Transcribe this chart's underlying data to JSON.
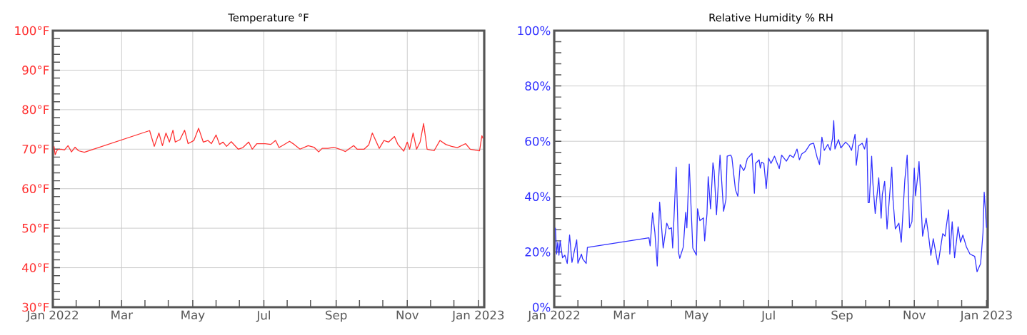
{
  "chart_data": [
    {
      "type": "line",
      "title": "Temperature °F",
      "grid": true,
      "xlim": [
        "2022-01-01",
        "2023-01-06"
      ],
      "xticks": [
        {
          "value": "2022-01-01",
          "label": "Jan 2022"
        },
        {
          "value": "2022-01-21",
          "label": null
        },
        {
          "value": "2022-02-10",
          "label": null
        },
        {
          "value": "2022-03-01",
          "label": "Mar"
        },
        {
          "value": "2022-03-21",
          "label": null
        },
        {
          "value": "2022-04-10",
          "label": null
        },
        {
          "value": "2022-05-01",
          "label": "May"
        },
        {
          "value": "2022-05-21",
          "label": null
        },
        {
          "value": "2022-06-10",
          "label": null
        },
        {
          "value": "2022-07-01",
          "label": "Jul"
        },
        {
          "value": "2022-07-21",
          "label": null
        },
        {
          "value": "2022-08-10",
          "label": null
        },
        {
          "value": "2022-09-01",
          "label": "Sep"
        },
        {
          "value": "2022-09-21",
          "label": null
        },
        {
          "value": "2022-10-11",
          "label": null
        },
        {
          "value": "2022-11-01",
          "label": "Nov"
        },
        {
          "value": "2022-11-21",
          "label": null
        },
        {
          "value": "2022-12-11",
          "label": null
        },
        {
          "value": "2023-01-01",
          "label": "Jan 2023"
        }
      ],
      "ylim": [
        30,
        100
      ],
      "yticks": [
        {
          "value": 30,
          "label": "30°F"
        },
        {
          "value": 32,
          "label": null
        },
        {
          "value": 34,
          "label": null
        },
        {
          "value": 36,
          "label": null
        },
        {
          "value": 38,
          "label": null
        },
        {
          "value": 40,
          "label": "40°F"
        },
        {
          "value": 42,
          "label": null
        },
        {
          "value": 44,
          "label": null
        },
        {
          "value": 46,
          "label": null
        },
        {
          "value": 48,
          "label": null
        },
        {
          "value": 50,
          "label": "50°F"
        },
        {
          "value": 52,
          "label": null
        },
        {
          "value": 54,
          "label": null
        },
        {
          "value": 56,
          "label": null
        },
        {
          "value": 58,
          "label": null
        },
        {
          "value": 60,
          "label": "60°F"
        },
        {
          "value": 62,
          "label": null
        },
        {
          "value": 64,
          "label": null
        },
        {
          "value": 66,
          "label": null
        },
        {
          "value": 68,
          "label": null
        },
        {
          "value": 70,
          "label": "70°F"
        },
        {
          "value": 72,
          "label": null
        },
        {
          "value": 74,
          "label": null
        },
        {
          "value": 76,
          "label": null
        },
        {
          "value": 78,
          "label": null
        },
        {
          "value": 80,
          "label": "80°F"
        },
        {
          "value": 82,
          "label": null
        },
        {
          "value": 84,
          "label": null
        },
        {
          "value": 86,
          "label": null
        },
        {
          "value": 88,
          "label": null
        },
        {
          "value": 90,
          "label": "90°F"
        },
        {
          "value": 92,
          "label": null
        },
        {
          "value": 94,
          "label": null
        },
        {
          "value": 96,
          "label": null
        },
        {
          "value": 98,
          "label": null
        },
        {
          "value": 100,
          "label": "100°F"
        }
      ],
      "x": [
        "2022-01-02",
        "2022-01-03",
        "2022-01-05",
        "2022-01-08",
        "2022-01-11",
        "2022-01-14",
        "2022-01-17",
        "2022-01-20",
        "2022-01-23",
        "2022-01-28",
        "2022-03-25",
        "2022-03-29",
        "2022-04-02",
        "2022-04-05",
        "2022-04-08",
        "2022-04-11",
        "2022-04-14",
        "2022-04-16",
        "2022-04-20",
        "2022-04-24",
        "2022-04-27",
        "2022-05-02",
        "2022-05-06",
        "2022-05-10",
        "2022-05-14",
        "2022-05-17",
        "2022-05-21",
        "2022-05-24",
        "2022-05-27",
        "2022-05-30",
        "2022-06-03",
        "2022-06-09",
        "2022-06-13",
        "2022-06-18",
        "2022-06-21",
        "2022-06-25",
        "2022-07-02",
        "2022-07-07",
        "2022-07-11",
        "2022-07-14",
        "2022-07-18",
        "2022-07-23",
        "2022-07-27",
        "2022-08-01",
        "2022-08-08",
        "2022-08-13",
        "2022-08-17",
        "2022-08-20",
        "2022-08-25",
        "2022-08-30",
        "2022-09-04",
        "2022-09-09",
        "2022-09-16",
        "2022-09-19",
        "2022-09-25",
        "2022-09-29",
        "2022-10-02",
        "2022-10-08",
        "2022-10-12",
        "2022-10-16",
        "2022-10-21",
        "2022-10-24",
        "2022-10-29",
        "2022-11-01",
        "2022-11-03",
        "2022-11-06",
        "2022-11-09",
        "2022-11-12",
        "2022-11-15",
        "2022-11-18",
        "2022-11-24",
        "2022-11-29",
        "2022-12-04",
        "2022-12-09",
        "2022-12-14",
        "2022-12-21",
        "2022-12-25",
        "2023-01-02",
        "2023-01-04",
        "2023-01-05"
      ],
      "series": [
        {
          "color": "#ff3030",
          "values": [
            70.7,
            68.6,
            69.9,
            70.0,
            69.8,
            70.9,
            69.3,
            70.5,
            69.6,
            69.2,
            74.7,
            70.7,
            74.1,
            70.9,
            74.1,
            71.8,
            74.8,
            71.8,
            72.4,
            74.8,
            71.4,
            72.2,
            75.3,
            71.8,
            72.2,
            71.4,
            73.6,
            71.2,
            71.8,
            70.7,
            71.9,
            70.0,
            70.4,
            71.8,
            70.0,
            71.4,
            71.4,
            71.2,
            72.2,
            70.4,
            71.1,
            72.0,
            71.2,
            70.0,
            70.9,
            70.5,
            69.3,
            70.2,
            70.2,
            70.5,
            70.0,
            69.4,
            70.9,
            70.0,
            70.0,
            71.1,
            74.1,
            70.2,
            72.2,
            71.8,
            73.2,
            71.2,
            69.5,
            71.8,
            70.0,
            74.1,
            70.0,
            71.8,
            76.5,
            70.0,
            69.6,
            72.2,
            71.2,
            70.7,
            70.4,
            71.4,
            70.0,
            69.6,
            73.4,
            72.7
          ]
        }
      ]
    },
    {
      "type": "line",
      "title": "Relative Humidity % RH",
      "grid": true,
      "xlim": [
        "2022-01-01",
        "2023-01-02"
      ],
      "xticks": [
        {
          "value": "2022-01-01",
          "label": "Jan 2022"
        },
        {
          "value": "2022-01-21",
          "label": null
        },
        {
          "value": "2022-02-10",
          "label": null
        },
        {
          "value": "2022-03-01",
          "label": "Mar"
        },
        {
          "value": "2022-03-21",
          "label": null
        },
        {
          "value": "2022-04-10",
          "label": null
        },
        {
          "value": "2022-05-01",
          "label": "May"
        },
        {
          "value": "2022-05-21",
          "label": null
        },
        {
          "value": "2022-06-10",
          "label": null
        },
        {
          "value": "2022-07-01",
          "label": "Jul"
        },
        {
          "value": "2022-07-21",
          "label": null
        },
        {
          "value": "2022-08-10",
          "label": null
        },
        {
          "value": "2022-09-01",
          "label": "Sep"
        },
        {
          "value": "2022-09-21",
          "label": null
        },
        {
          "value": "2022-10-11",
          "label": null
        },
        {
          "value": "2022-11-01",
          "label": "Nov"
        },
        {
          "value": "2022-11-21",
          "label": null
        },
        {
          "value": "2022-12-11",
          "label": null
        },
        {
          "value": "2023-01-01",
          "label": "Jan 2023"
        }
      ],
      "ylim": [
        0,
        100
      ],
      "yticks": [
        {
          "value": 0,
          "label": "0%"
        },
        {
          "value": 4,
          "label": null
        },
        {
          "value": 8,
          "label": null
        },
        {
          "value": 12,
          "label": null
        },
        {
          "value": 16,
          "label": null
        },
        {
          "value": 20,
          "label": "20%"
        },
        {
          "value": 24,
          "label": null
        },
        {
          "value": 28,
          "label": null
        },
        {
          "value": 32,
          "label": null
        },
        {
          "value": 36,
          "label": null
        },
        {
          "value": 40,
          "label": "40%"
        },
        {
          "value": 44,
          "label": null
        },
        {
          "value": 48,
          "label": null
        },
        {
          "value": 52,
          "label": null
        },
        {
          "value": 56,
          "label": null
        },
        {
          "value": 60,
          "label": "60%"
        },
        {
          "value": 64,
          "label": null
        },
        {
          "value": 68,
          "label": null
        },
        {
          "value": 72,
          "label": null
        },
        {
          "value": 76,
          "label": null
        },
        {
          "value": 80,
          "label": "80%"
        },
        {
          "value": 84,
          "label": null
        },
        {
          "value": 88,
          "label": null
        },
        {
          "value": 92,
          "label": null
        },
        {
          "value": 96,
          "label": null
        },
        {
          "value": 100,
          "label": "100%"
        }
      ],
      "x": [
        "2022-01-02",
        "2022-01-03",
        "2022-01-04",
        "2022-01-05",
        "2022-01-06",
        "2022-01-08",
        "2022-01-10",
        "2022-01-12",
        "2022-01-14",
        "2022-01-16",
        "2022-01-20",
        "2022-01-21",
        "2022-01-24",
        "2022-01-25",
        "2022-01-28",
        "2022-01-29",
        "2022-03-22",
        "2022-03-23",
        "2022-03-25",
        "2022-03-27",
        "2022-03-29",
        "2022-03-31",
        "2022-04-03",
        "2022-04-06",
        "2022-04-08",
        "2022-04-10",
        "2022-04-11",
        "2022-04-14",
        "2022-04-16",
        "2022-04-17",
        "2022-04-20",
        "2022-04-22",
        "2022-04-23",
        "2022-04-25",
        "2022-04-28",
        "2022-05-01",
        "2022-05-02",
        "2022-05-04",
        "2022-05-07",
        "2022-05-08",
        "2022-05-10",
        "2022-05-11",
        "2022-05-13",
        "2022-05-15",
        "2022-05-16",
        "2022-05-18",
        "2022-05-21",
        "2022-05-24",
        "2022-05-26",
        "2022-05-27",
        "2022-05-30",
        "2022-05-31",
        "2022-06-03",
        "2022-06-05",
        "2022-06-07",
        "2022-06-10",
        "2022-06-11",
        "2022-06-13",
        "2022-06-17",
        "2022-06-19",
        "2022-06-20",
        "2022-06-23",
        "2022-06-24",
        "2022-06-25",
        "2022-06-27",
        "2022-06-29",
        "2022-07-01",
        "2022-07-03",
        "2022-07-06",
        "2022-07-10",
        "2022-07-12",
        "2022-07-16",
        "2022-07-19",
        "2022-07-22",
        "2022-07-25",
        "2022-07-27",
        "2022-07-29",
        "2022-08-01",
        "2022-08-05",
        "2022-08-08",
        "2022-08-11",
        "2022-08-13",
        "2022-08-15",
        "2022-08-17",
        "2022-08-20",
        "2022-08-22",
        "2022-08-24",
        "2022-08-25",
        "2022-08-26",
        "2022-08-29",
        "2022-08-31",
        "2022-09-04",
        "2022-09-07",
        "2022-09-09",
        "2022-09-12",
        "2022-09-13",
        "2022-09-15",
        "2022-09-18",
        "2022-09-20",
        "2022-09-22",
        "2022-09-23",
        "2022-09-24",
        "2022-09-26",
        "2022-09-27",
        "2022-09-29",
        "2022-10-02",
        "2022-10-04",
        "2022-10-05",
        "2022-10-07",
        "2022-10-09",
        "2022-10-13",
        "2022-10-14",
        "2022-10-16",
        "2022-10-19",
        "2022-10-21",
        "2022-10-24",
        "2022-10-26",
        "2022-10-28",
        "2022-10-30",
        "2022-11-01",
        "2022-11-02",
        "2022-11-04",
        "2022-11-05",
        "2022-11-08",
        "2022-11-11",
        "2022-11-13",
        "2022-11-15",
        "2022-11-17",
        "2022-11-21",
        "2022-11-25",
        "2022-11-27",
        "2022-11-28",
        "2022-11-30",
        "2022-12-01",
        "2022-12-03",
        "2022-12-05",
        "2022-12-08",
        "2022-12-10",
        "2022-12-12",
        "2022-12-15",
        "2022-12-18",
        "2022-12-22",
        "2022-12-24",
        "2022-12-27",
        "2022-12-29",
        "2022-12-30",
        "2023-01-01"
      ],
      "series": [
        {
          "color": "#3030ff",
          "values": [
            28.7,
            19.2,
            23.5,
            18.8,
            24.0,
            17.9,
            18.8,
            15.8,
            26.1,
            16.2,
            24.4,
            15.9,
            19.2,
            17.5,
            15.8,
            21.6,
            25.1,
            22.2,
            34.1,
            27.0,
            14.9,
            38.0,
            21.4,
            30.4,
            28.3,
            28.7,
            21.4,
            50.7,
            19.7,
            17.7,
            21.8,
            34.3,
            28.7,
            51.8,
            21.4,
            18.8,
            35.6,
            31.3,
            32.3,
            24.0,
            33.9,
            47.2,
            35.6,
            52.2,
            49.4,
            33.4,
            55.0,
            34.7,
            39.0,
            54.6,
            55.0,
            54.1,
            42.5,
            40.1,
            51.6,
            49.4,
            50.3,
            53.7,
            55.6,
            41.2,
            52.0,
            53.3,
            50.3,
            52.4,
            52.0,
            42.9,
            53.9,
            52.0,
            54.6,
            50.1,
            55.0,
            52.8,
            55.0,
            54.1,
            57.2,
            53.3,
            55.4,
            56.3,
            58.9,
            59.3,
            54.1,
            51.6,
            61.5,
            56.7,
            58.9,
            56.7,
            61.1,
            67.5,
            57.2,
            60.6,
            57.6,
            59.7,
            58.4,
            56.7,
            62.5,
            51.3,
            58.4,
            59.3,
            57.2,
            61.1,
            37.8,
            37.8,
            54.6,
            45.1,
            33.9,
            46.8,
            32.2,
            40.8,
            45.5,
            28.3,
            50.7,
            39.1,
            28.3,
            30.4,
            23.5,
            45.9,
            55.0,
            28.7,
            30.9,
            50.3,
            40.3,
            47.7,
            52.7,
            25.7,
            32.2,
            26.1,
            18.8,
            24.8,
            15.3,
            26.6,
            25.7,
            29.1,
            35.2,
            19.2,
            30.9,
            17.9,
            29.1,
            23.5,
            26.1,
            21.8,
            19.2,
            18.4,
            12.8,
            15.8,
            27.0,
            41.6,
            28.7
          ]
        }
      ]
    }
  ]
}
